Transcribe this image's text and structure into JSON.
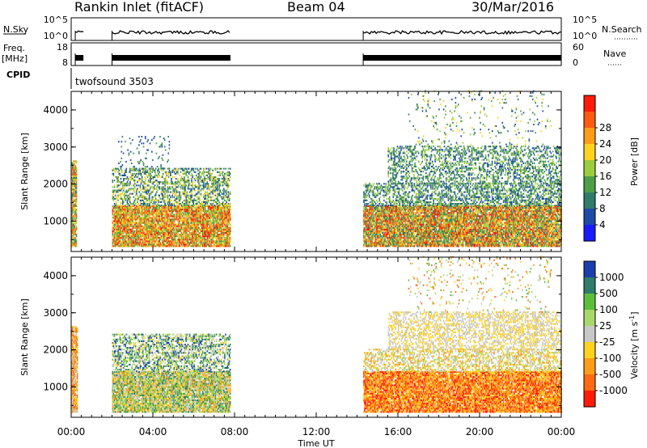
{
  "header": {
    "station": "Rankin Inlet (fitACF)",
    "beam": "Beam 04",
    "date": "30/Mar/2016"
  },
  "strip_panels": {
    "nsky": {
      "left_label": "N.Sky",
      "left_ticks": [
        "10^5",
        "10^0"
      ],
      "right_label": "N.Search",
      "right_ticks": [
        "10^5",
        "10^0"
      ]
    },
    "freq": {
      "left_label_top": "Freq.",
      "left_label_unit": "[MHz]",
      "left_ticks": [
        "18",
        "8"
      ],
      "right_label": "Nave",
      "right_ticks": [
        "60",
        "0"
      ]
    },
    "cpid": {
      "label": "CPID",
      "program": "twofsound 3503"
    }
  },
  "chart_data": [
    {
      "type": "heatmap",
      "name": "power",
      "x_unit": "hours UT",
      "xlim": [
        0,
        24
      ],
      "ylabel": "Slant Range [km]",
      "ylim": [
        180,
        4500
      ],
      "yticks": [
        1000,
        2000,
        3000,
        4000
      ],
      "colorbar_label": "Power [dB]",
      "colorbar_ticks": [
        "4",
        "8",
        "12",
        "16",
        "20",
        "24",
        "28"
      ],
      "colors": [
        "#1a1aff",
        "#1e4aa8",
        "#2e7d6b",
        "#4f9e48",
        "#9ccd3a",
        "#ffd21f",
        "#ff9c1a",
        "#ff5a12",
        "#ff1a0a"
      ],
      "regions": [
        {
          "t0": 0.0,
          "t1": 0.25,
          "r0": 300,
          "r1": 2600,
          "level_low": 2,
          "level_high": 7,
          "density": 0.85
        },
        {
          "t0": 2.0,
          "t1": 7.8,
          "r0": 300,
          "r1": 1400,
          "level_low": 3,
          "level_high": 8,
          "density": 0.85
        },
        {
          "t0": 2.0,
          "t1": 7.8,
          "r0": 1400,
          "r1": 2400,
          "level_low": 1,
          "level_high": 5,
          "density": 0.45
        },
        {
          "t0": 2.3,
          "t1": 4.8,
          "r0": 2400,
          "r1": 3300,
          "level_low": 1,
          "level_high": 3,
          "density": 0.08
        },
        {
          "t0": 14.3,
          "t1": 24.0,
          "r0": 300,
          "r1": 1400,
          "level_low": 2,
          "level_high": 8,
          "density": 0.85
        },
        {
          "t0": 14.3,
          "t1": 24.0,
          "r0": 1400,
          "r1": 2000,
          "level_low": 1,
          "level_high": 4,
          "density": 0.45
        },
        {
          "t0": 15.5,
          "t1": 24.0,
          "r0": 2000,
          "r1": 3000,
          "level_low": 1,
          "level_high": 4,
          "density": 0.35
        },
        {
          "t0": 16.5,
          "t1": 23.5,
          "r0": 3000,
          "r1": 4500,
          "level_low": 1,
          "level_high": 5,
          "density": 0.05
        }
      ]
    },
    {
      "type": "heatmap",
      "name": "velocity",
      "x_unit": "hours UT",
      "xlim": [
        0,
        24
      ],
      "xlabel": "Time UT",
      "xticks": [
        "00:00",
        "04:00",
        "08:00",
        "12:00",
        "16:00",
        "20:00",
        "00:00"
      ],
      "ylabel": "Slant Range [km]",
      "ylim": [
        180,
        4500
      ],
      "yticks": [
        1000,
        2000,
        3000,
        4000
      ],
      "colorbar_label_text": "Velocity [m s",
      "colorbar_label_sup": "-1",
      "colorbar_label_end": "]",
      "colorbar_ticks": [
        "1000",
        "500",
        "100",
        "25",
        "-25",
        "-100",
        "-500",
        "-1000"
      ],
      "colors": [
        "#1c3fae",
        "#2e7d6b",
        "#5bbf3a",
        "#a8d86a",
        "#c8c8c8",
        "#ffd21f",
        "#ff9c1a",
        "#ff6a12",
        "#ff1a0a"
      ],
      "regions": [
        {
          "t0": 0.0,
          "t1": 0.3,
          "r0": 300,
          "r1": 2600,
          "level_low": 4,
          "level_high": 7,
          "density": 0.85
        },
        {
          "t0": 2.0,
          "t1": 7.8,
          "r0": 300,
          "r1": 1400,
          "level_low": 1,
          "level_high": 6,
          "density": 0.85
        },
        {
          "t0": 2.0,
          "t1": 7.8,
          "r0": 1400,
          "r1": 2400,
          "level_low": 0,
          "level_high": 5,
          "density": 0.45
        },
        {
          "t0": 14.3,
          "t1": 24.0,
          "r0": 300,
          "r1": 1400,
          "level_low": 5,
          "level_high": 8,
          "density": 0.85
        },
        {
          "t0": 14.3,
          "t1": 24.0,
          "r0": 1400,
          "r1": 2000,
          "level_low": 3,
          "level_high": 6,
          "density": 0.45
        },
        {
          "t0": 15.5,
          "t1": 24.0,
          "r0": 2000,
          "r1": 3000,
          "level_low": 4,
          "level_high": 5,
          "density": 0.4
        },
        {
          "t0": 16.5,
          "t1": 23.5,
          "r0": 3000,
          "r1": 4500,
          "level_low": 2,
          "level_high": 7,
          "density": 0.05
        }
      ]
    }
  ]
}
